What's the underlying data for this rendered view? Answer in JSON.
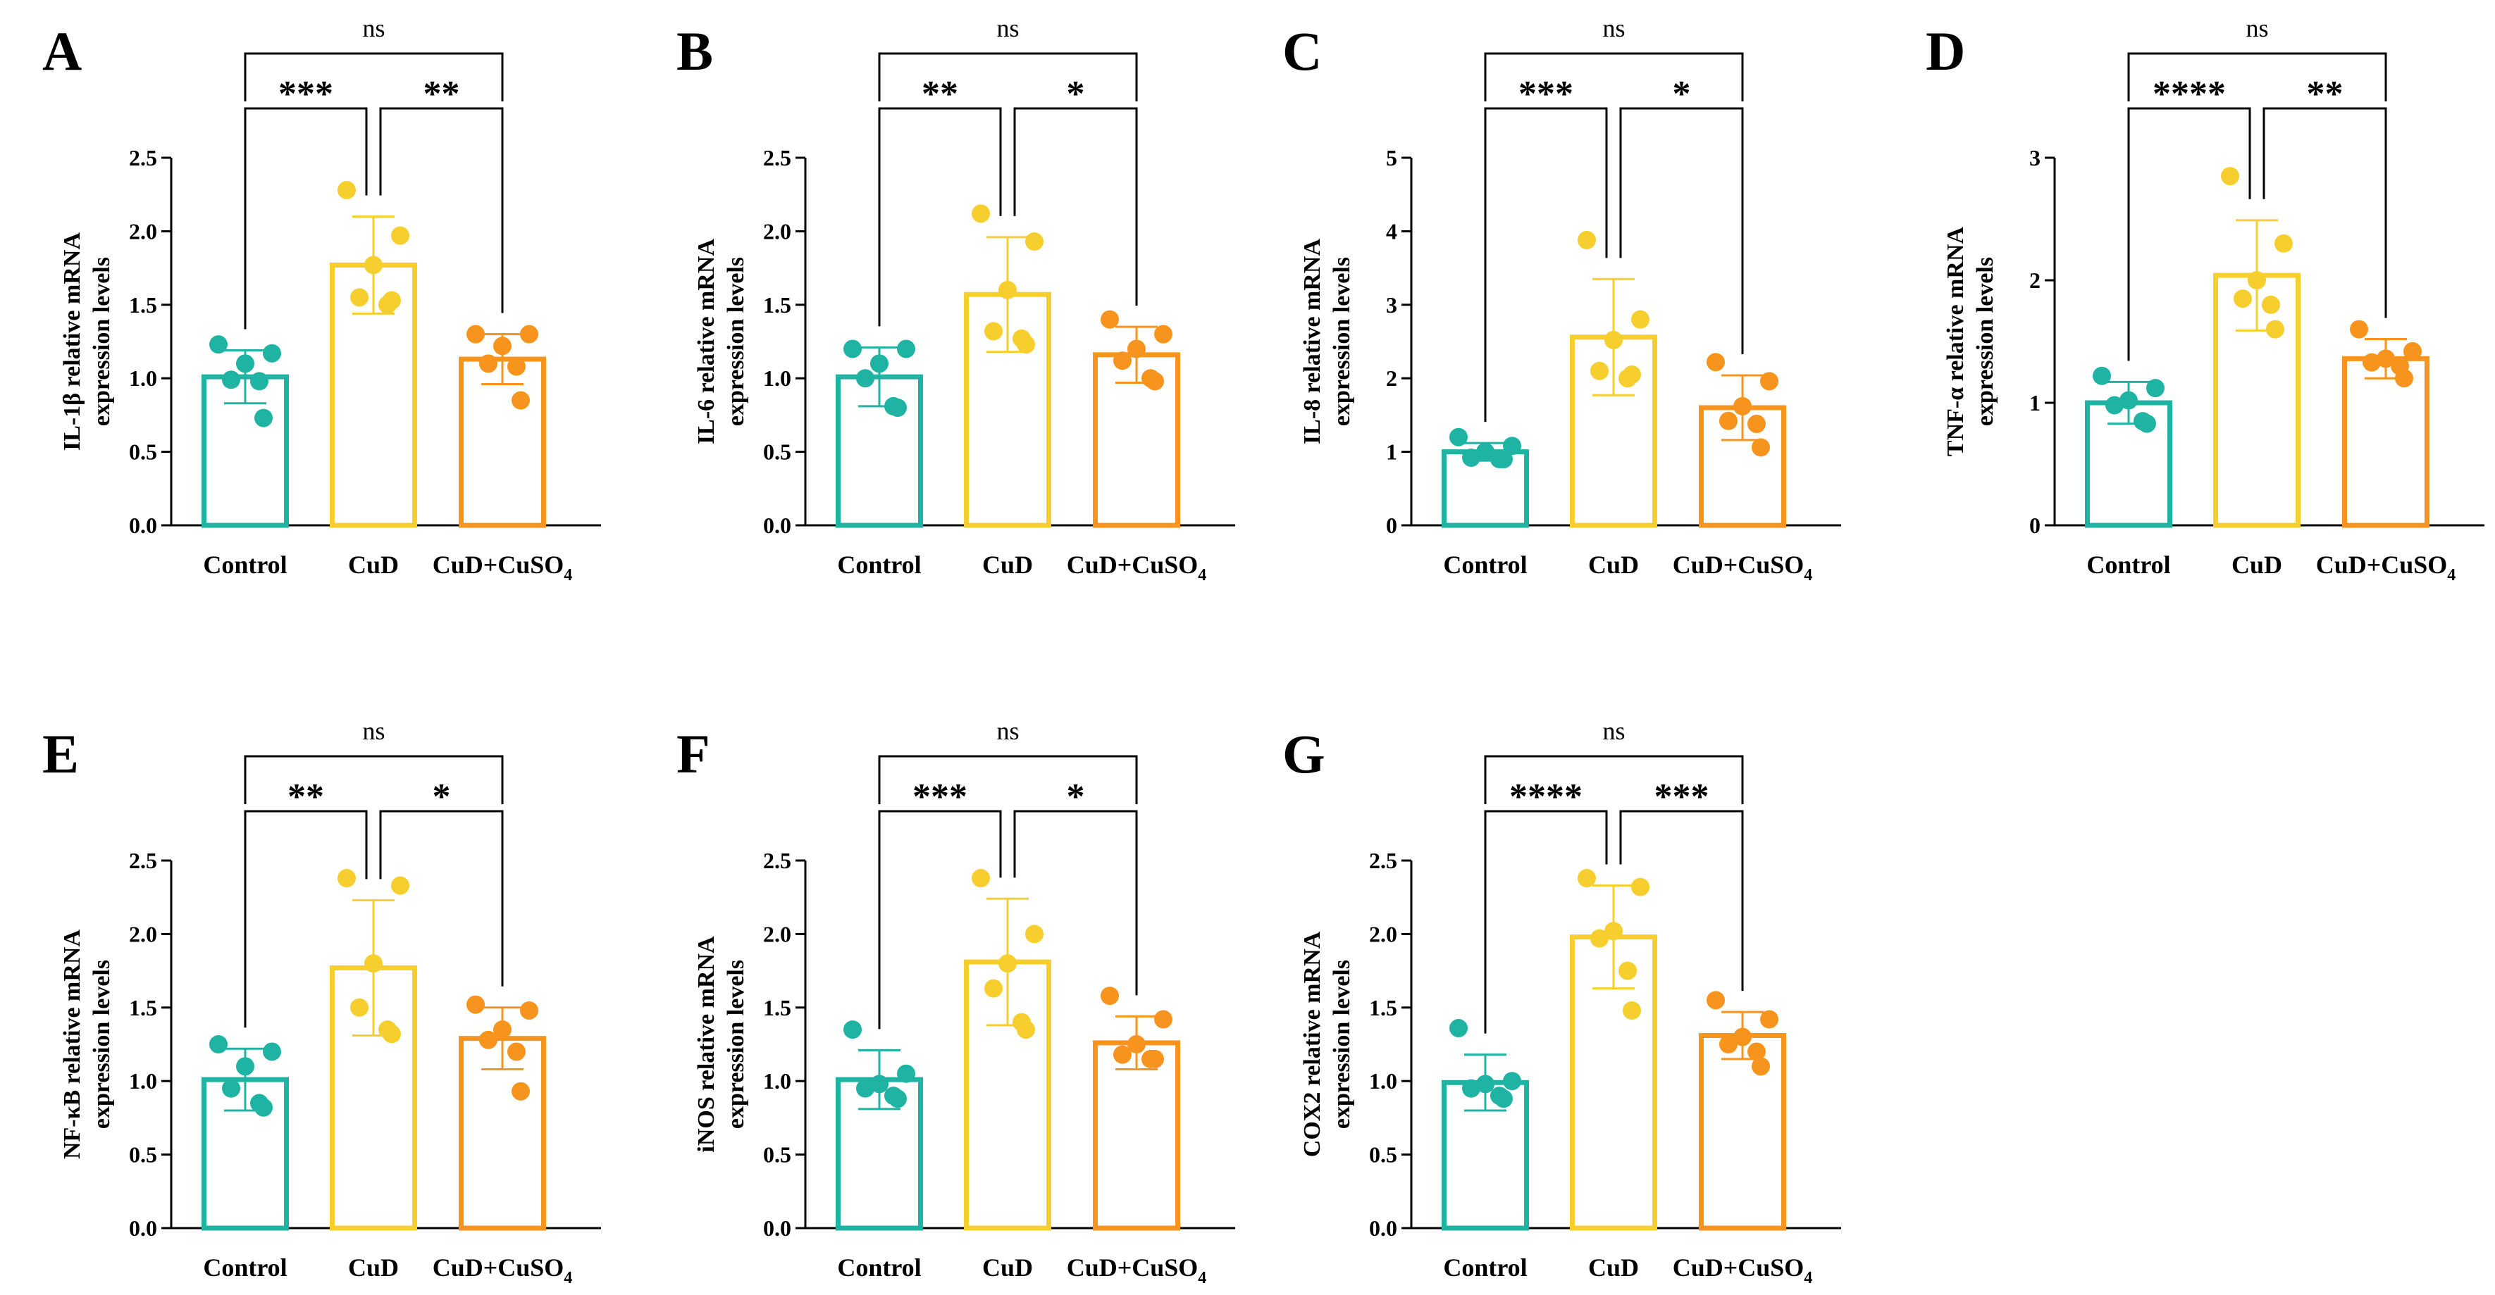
{
  "colors": {
    "control": "#1fb3a3",
    "cud": "#f6cf2f",
    "cud_cuso4": "#f7941d",
    "ink": "#000000"
  },
  "chart_data": [
    {
      "type": "bar",
      "panel": "A",
      "categories": [
        "Control",
        "CuD",
        "CuD+CuSO4"
      ],
      "category_display": [
        [
          "Control"
        ],
        [
          "CuD"
        ],
        [
          "CuD+CuSO",
          "4"
        ]
      ],
      "ylabel": [
        "IL-1β relative mRNA",
        "expression levels"
      ],
      "ylim": [
        0,
        2.5
      ],
      "yticks": [
        "0.0",
        "0.5",
        "1.0",
        "1.5",
        "2.0",
        "2.5"
      ],
      "means": [
        1.01,
        1.77,
        1.13
      ],
      "sd": [
        0.18,
        0.33,
        0.17
      ],
      "points": [
        [
          1.23,
          1.17,
          1.1,
          0.99,
          0.98,
          0.73
        ],
        [
          2.28,
          1.97,
          1.77,
          1.55,
          1.5,
          1.53
        ],
        [
          1.3,
          1.3,
          1.22,
          1.1,
          1.08,
          0.85
        ]
      ],
      "comparisons": [
        {
          "from": 0,
          "to": 1,
          "label": "***"
        },
        {
          "from": 1,
          "to": 2,
          "label": "**"
        },
        {
          "from": 0,
          "to": 2,
          "label": "ns"
        }
      ]
    },
    {
      "type": "bar",
      "panel": "B",
      "categories": [
        "Control",
        "CuD",
        "CuD+CuSO4"
      ],
      "category_display": [
        [
          "Control"
        ],
        [
          "CuD"
        ],
        [
          "CuD+CuSO",
          "4"
        ]
      ],
      "ylabel": [
        "IL-6 relative mRNA",
        "expression levels"
      ],
      "ylim": [
        0,
        2.5
      ],
      "yticks": [
        "0.0",
        "0.5",
        "1.0",
        "1.5",
        "2.0",
        "2.5"
      ],
      "means": [
        1.01,
        1.57,
        1.16
      ],
      "sd": [
        0.2,
        0.39,
        0.19
      ],
      "points": [
        [
          1.2,
          1.2,
          1.1,
          1.0,
          0.81,
          0.8
        ],
        [
          2.12,
          1.93,
          1.6,
          1.32,
          1.27,
          1.23
        ],
        [
          1.4,
          1.3,
          1.2,
          1.12,
          1.0,
          0.98
        ]
      ],
      "comparisons": [
        {
          "from": 0,
          "to": 1,
          "label": "**"
        },
        {
          "from": 1,
          "to": 2,
          "label": "*"
        },
        {
          "from": 0,
          "to": 2,
          "label": "ns"
        }
      ]
    },
    {
      "type": "bar",
      "panel": "C",
      "categories": [
        "Control",
        "CuD",
        "CuD+CuSO4"
      ],
      "category_display": [
        [
          "Control"
        ],
        [
          "CuD"
        ],
        [
          "CuD+CuSO",
          "4"
        ]
      ],
      "ylabel": [
        "IL-8 relative mRNA",
        "expression levels"
      ],
      "ylim": [
        0,
        5
      ],
      "yticks": [
        "0",
        "1",
        "2",
        "3",
        "4",
        "5"
      ],
      "means": [
        1.0,
        2.56,
        1.6
      ],
      "sd": [
        0.12,
        0.79,
        0.44
      ],
      "points": [
        [
          1.2,
          1.08,
          1.0,
          0.92,
          0.9,
          0.9
        ],
        [
          3.88,
          2.8,
          2.52,
          2.1,
          2.0,
          2.05
        ],
        [
          2.22,
          1.96,
          1.62,
          1.42,
          1.38,
          1.06
        ]
      ],
      "comparisons": [
        {
          "from": 0,
          "to": 1,
          "label": "***"
        },
        {
          "from": 1,
          "to": 2,
          "label": "*"
        },
        {
          "from": 0,
          "to": 2,
          "label": "ns"
        }
      ]
    },
    {
      "type": "bar",
      "panel": "D",
      "categories": [
        "Control",
        "CuD",
        "CuD+CuSO4"
      ],
      "category_display": [
        [
          "Control"
        ],
        [
          "CuD"
        ],
        [
          "CuD+CuSO",
          "4"
        ]
      ],
      "ylabel": [
        "TNF-α relative mRNA",
        "expression levels"
      ],
      "ylim": [
        0,
        3
      ],
      "yticks": [
        "0",
        "1",
        "2",
        "3"
      ],
      "means": [
        1.0,
        2.04,
        1.36
      ],
      "sd": [
        0.17,
        0.45,
        0.16
      ],
      "points": [
        [
          1.22,
          1.12,
          1.02,
          0.98,
          0.85,
          0.83
        ],
        [
          2.85,
          2.3,
          2.0,
          1.85,
          1.8,
          1.6
        ],
        [
          1.6,
          1.42,
          1.36,
          1.33,
          1.3,
          1.2
        ]
      ],
      "comparisons": [
        {
          "from": 0,
          "to": 1,
          "label": "****"
        },
        {
          "from": 1,
          "to": 2,
          "label": "**"
        },
        {
          "from": 0,
          "to": 2,
          "label": "ns"
        }
      ]
    },
    {
      "type": "bar",
      "panel": "E",
      "categories": [
        "Control",
        "CuD",
        "CuD+CuSO4"
      ],
      "category_display": [
        [
          "Control"
        ],
        [
          "CuD"
        ],
        [
          "CuD+CuSO",
          "4"
        ]
      ],
      "ylabel": [
        "NF-κB relative mRNA",
        "expression levels"
      ],
      "ylim": [
        0,
        2.5
      ],
      "yticks": [
        "0.0",
        "0.5",
        "1.0",
        "1.5",
        "2.0",
        "2.5"
      ],
      "means": [
        1.01,
        1.77,
        1.29
      ],
      "sd": [
        0.21,
        0.46,
        0.21
      ],
      "points": [
        [
          1.25,
          1.2,
          1.1,
          0.95,
          0.85,
          0.82
        ],
        [
          2.38,
          2.33,
          1.8,
          1.5,
          1.35,
          1.32
        ],
        [
          1.52,
          1.48,
          1.35,
          1.28,
          1.2,
          0.93
        ]
      ],
      "comparisons": [
        {
          "from": 0,
          "to": 1,
          "label": "**"
        },
        {
          "from": 1,
          "to": 2,
          "label": "*"
        },
        {
          "from": 0,
          "to": 2,
          "label": "ns"
        }
      ]
    },
    {
      "type": "bar",
      "panel": "F",
      "categories": [
        "Control",
        "CuD",
        "CuD+CuSO4"
      ],
      "category_display": [
        [
          "Control"
        ],
        [
          "CuD"
        ],
        [
          "CuD+CuSO",
          "4"
        ]
      ],
      "ylabel": [
        "iNOS relative mRNA",
        "expression levels"
      ],
      "ylim": [
        0,
        2.5
      ],
      "yticks": [
        "0.0",
        "0.5",
        "1.0",
        "1.5",
        "2.0",
        "2.5"
      ],
      "means": [
        1.01,
        1.81,
        1.26
      ],
      "sd": [
        0.2,
        0.43,
        0.18
      ],
      "points": [
        [
          1.35,
          1.05,
          0.98,
          0.95,
          0.9,
          0.88
        ],
        [
          2.38,
          2.0,
          1.8,
          1.63,
          1.4,
          1.35
        ],
        [
          1.58,
          1.42,
          1.25,
          1.18,
          1.15,
          1.15
        ]
      ],
      "comparisons": [
        {
          "from": 0,
          "to": 1,
          "label": "***"
        },
        {
          "from": 1,
          "to": 2,
          "label": "*"
        },
        {
          "from": 0,
          "to": 2,
          "label": "ns"
        }
      ]
    },
    {
      "type": "bar",
      "panel": "G",
      "categories": [
        "Control",
        "CuD",
        "CuD+CuSO4"
      ],
      "category_display": [
        [
          "Control"
        ],
        [
          "CuD"
        ],
        [
          "CuD+CuSO",
          "4"
        ]
      ],
      "ylabel": [
        "COX2 relative mRNA",
        "expression levels"
      ],
      "ylim": [
        0,
        2.5
      ],
      "yticks": [
        "0.0",
        "0.5",
        "1.0",
        "1.5",
        "2.0",
        "2.5"
      ],
      "means": [
        0.99,
        1.98,
        1.31
      ],
      "sd": [
        0.19,
        0.35,
        0.16
      ],
      "points": [
        [
          1.36,
          1.0,
          0.98,
          0.95,
          0.9,
          0.88
        ],
        [
          2.38,
          2.32,
          2.02,
          1.97,
          1.75,
          1.48
        ],
        [
          1.55,
          1.42,
          1.3,
          1.25,
          1.2,
          1.1
        ]
      ],
      "comparisons": [
        {
          "from": 0,
          "to": 1,
          "label": "****"
        },
        {
          "from": 1,
          "to": 2,
          "label": "***"
        },
        {
          "from": 0,
          "to": 2,
          "label": "ns"
        }
      ]
    }
  ]
}
